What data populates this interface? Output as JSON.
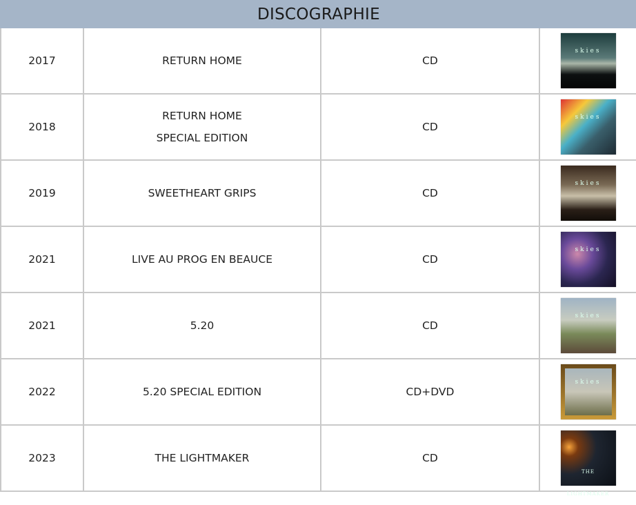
{
  "title": "DISCOGRAPHIE",
  "rows": [
    {
      "year": "2017",
      "title": [
        "RETURN HOME"
      ],
      "format": "CD",
      "cover_text": "skies"
    },
    {
      "year": "2018",
      "title": [
        "RETURN HOME",
        "SPECIAL EDITION"
      ],
      "format": "CD",
      "cover_text": "skies"
    },
    {
      "year": "2019",
      "title": [
        "SWEETHEART GRIPS"
      ],
      "format": "CD",
      "cover_text": "skies"
    },
    {
      "year": "2021",
      "title": [
        "LIVE AU PROG EN BEAUCE"
      ],
      "format": "CD",
      "cover_text": "skies"
    },
    {
      "year": "2021",
      "title": [
        "5.20"
      ],
      "format": "CD",
      "cover_text": "skies"
    },
    {
      "year": "2022",
      "title": [
        "5.20 SPECIAL EDITION"
      ],
      "format": "CD+DVD",
      "cover_text": "skies"
    },
    {
      "year": "2023",
      "title": [
        "THE LIGHTMAKER"
      ],
      "format": "CD",
      "cover_text": "THE LIGHTMAKER"
    }
  ],
  "colors": {
    "header_bg": "#a5b5c8",
    "border": "#c9c9c9"
  }
}
